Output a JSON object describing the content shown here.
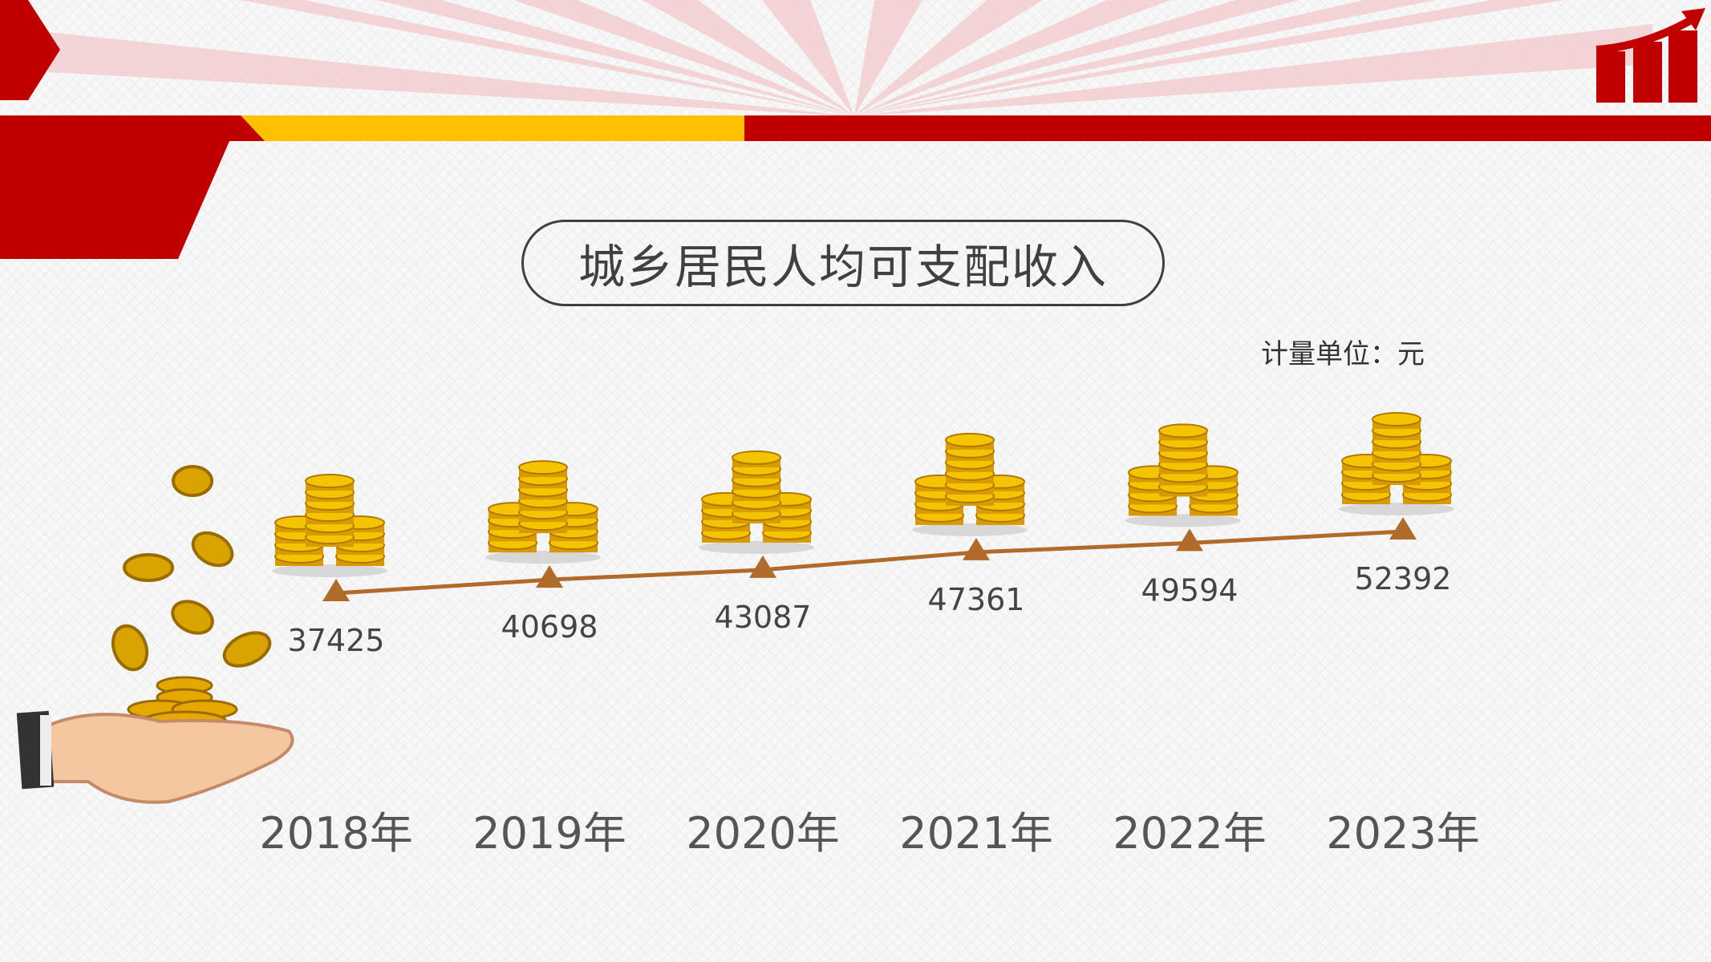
{
  "header": {
    "title": "城乡居民人均可支配收入",
    "unit": "计量单位：元"
  },
  "colors": {
    "primary_red": "#c00000",
    "accent_yellow": "#ffc000",
    "line": "#b06a2a",
    "coin_gold": "#e8a900"
  },
  "icons": {
    "corner": "bar-chart-growth-icon",
    "hand": "hand-holding-coins-icon",
    "coins": "coin-stack-icon"
  },
  "chart_data": {
    "type": "line",
    "categories": [
      "2018年",
      "2019年",
      "2020年",
      "2021年",
      "2022年",
      "2023年"
    ],
    "values": [
      37425,
      40698,
      43087,
      47361,
      49594,
      52392
    ],
    "title": "城乡居民人均可支配收入",
    "legend": "none",
    "grid": false
  }
}
